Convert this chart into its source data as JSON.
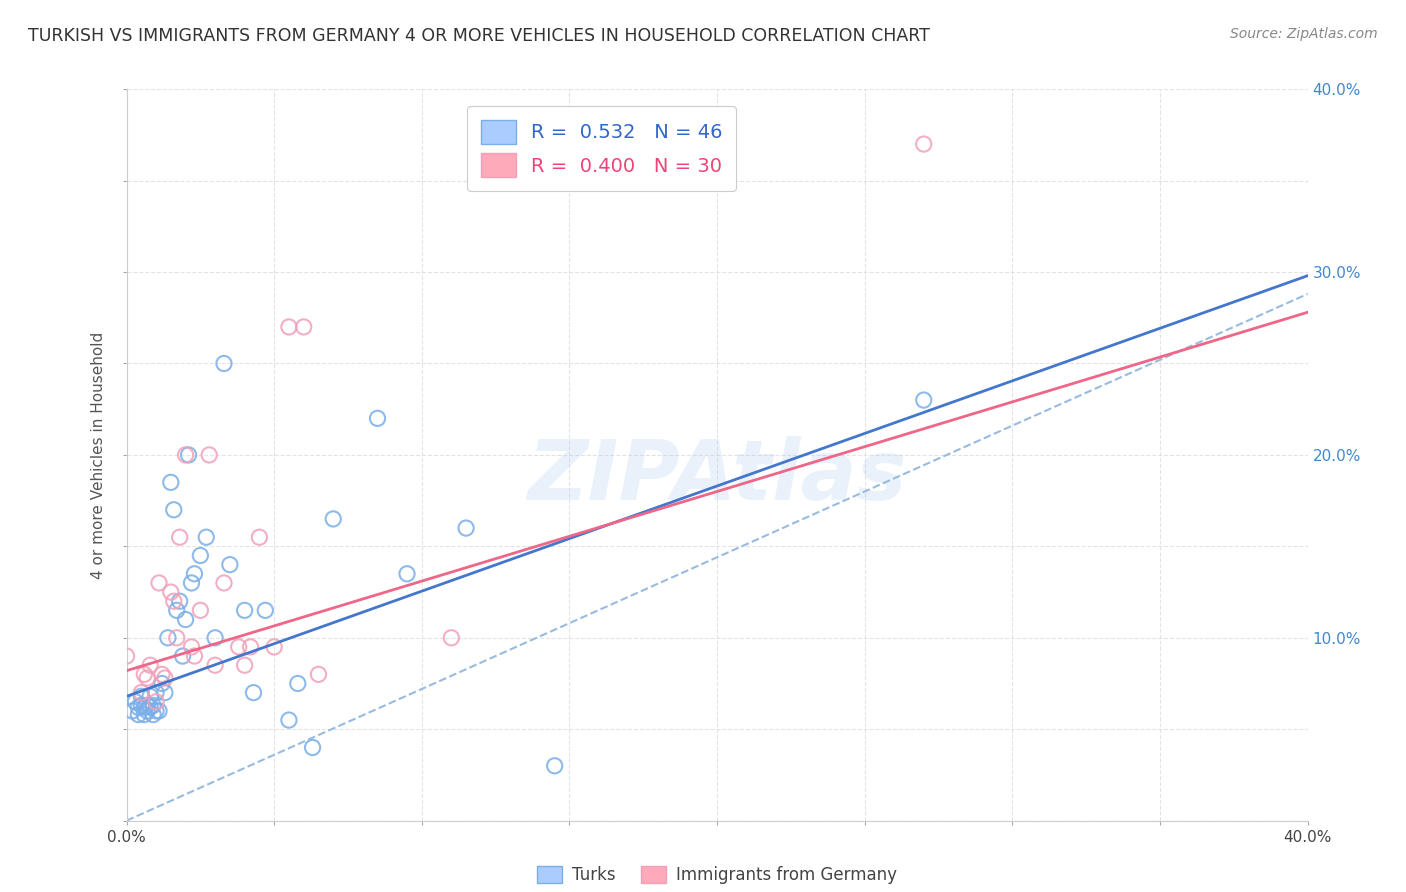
{
  "title": "TURKISH VS IMMIGRANTS FROM GERMANY 4 OR MORE VEHICLES IN HOUSEHOLD CORRELATION CHART",
  "source": "Source: ZipAtlas.com",
  "ylabel": "4 or more Vehicles in Household",
  "xlim": [
    0.0,
    0.4
  ],
  "ylim": [
    0.0,
    0.4
  ],
  "xticks": [
    0.0,
    0.05,
    0.1,
    0.15,
    0.2,
    0.25,
    0.3,
    0.35,
    0.4
  ],
  "yticks": [
    0.0,
    0.05,
    0.1,
    0.15,
    0.2,
    0.25,
    0.3,
    0.35,
    0.4
  ],
  "turks_color": "#7aaee8",
  "germany_color": "#f0a0b8",
  "turks_line_color": "#4477CC",
  "germany_line_color": "#EE6688",
  "dashed_line_color": "#99BBDD",
  "legend_turks_R": "0.532",
  "legend_turks_N": "46",
  "legend_germany_R": "0.400",
  "legend_germany_N": "30",
  "legend_label_turks": "Turks",
  "legend_label_germany": "Immigrants from Germany",
  "watermark": "ZIPAtlas",
  "turks_x": [
    0.002,
    0.003,
    0.004,
    0.004,
    0.005,
    0.005,
    0.006,
    0.006,
    0.007,
    0.007,
    0.008,
    0.008,
    0.009,
    0.009,
    0.01,
    0.01,
    0.011,
    0.012,
    0.013,
    0.014,
    0.015,
    0.016,
    0.017,
    0.018,
    0.019,
    0.02,
    0.021,
    0.022,
    0.023,
    0.025,
    0.027,
    0.03,
    0.033,
    0.035,
    0.04,
    0.043,
    0.047,
    0.055,
    0.058,
    0.063,
    0.07,
    0.085,
    0.095,
    0.115,
    0.145,
    0.27
  ],
  "turks_y": [
    0.06,
    0.065,
    0.062,
    0.058,
    0.063,
    0.068,
    0.062,
    0.058,
    0.06,
    0.063,
    0.062,
    0.068,
    0.063,
    0.058,
    0.06,
    0.07,
    0.06,
    0.075,
    0.07,
    0.1,
    0.185,
    0.17,
    0.115,
    0.12,
    0.09,
    0.11,
    0.2,
    0.13,
    0.135,
    0.145,
    0.155,
    0.1,
    0.25,
    0.14,
    0.115,
    0.07,
    0.115,
    0.055,
    0.075,
    0.04,
    0.165,
    0.22,
    0.135,
    0.16,
    0.03,
    0.23
  ],
  "germany_x": [
    0.0,
    0.005,
    0.006,
    0.007,
    0.008,
    0.01,
    0.011,
    0.012,
    0.013,
    0.015,
    0.016,
    0.017,
    0.018,
    0.02,
    0.022,
    0.023,
    0.025,
    0.028,
    0.03,
    0.033,
    0.038,
    0.04,
    0.042,
    0.045,
    0.05,
    0.055,
    0.06,
    0.065,
    0.11,
    0.27
  ],
  "germany_y": [
    0.09,
    0.07,
    0.08,
    0.078,
    0.085,
    0.065,
    0.13,
    0.08,
    0.078,
    0.125,
    0.12,
    0.1,
    0.155,
    0.2,
    0.095,
    0.09,
    0.115,
    0.2,
    0.085,
    0.13,
    0.095,
    0.085,
    0.095,
    0.155,
    0.095,
    0.27,
    0.27,
    0.08,
    0.1,
    0.37
  ],
  "turks_reg_intercept": 0.068,
  "turks_reg_slope": 0.575,
  "germany_reg_intercept": 0.082,
  "germany_reg_slope": 0.49,
  "ref_line_slope": 0.72,
  "ref_line_intercept": 0.0
}
